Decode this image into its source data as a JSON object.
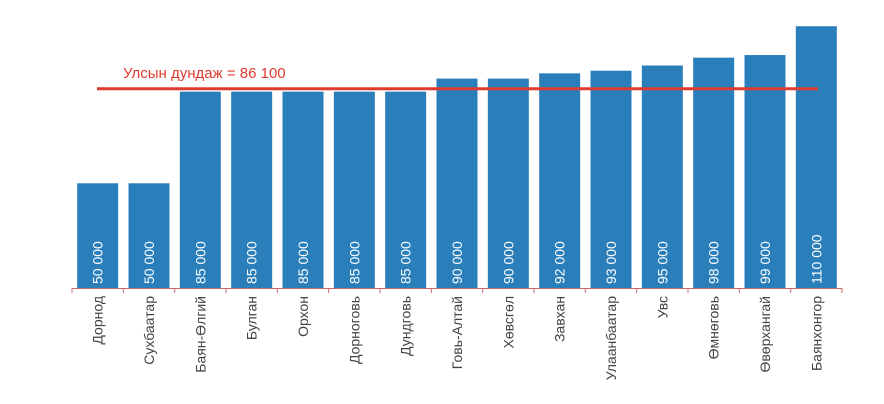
{
  "chart_data": {
    "type": "bar",
    "title": "",
    "xlabel": "",
    "ylabel": "",
    "ylim": [
      10000,
      112000
    ],
    "grid": false,
    "categories": [
      "Дорнод",
      "Сухбаатар",
      "Баян-Өлгий",
      "Булган",
      "Орхон",
      "Дорноговь",
      "Дундговь",
      "Говь-Алтай",
      "Хөвсгөл",
      "Завхан",
      "Улаанбаатар",
      "Увс",
      "Өмнөговь",
      "Өвөрхангай",
      "Баянхонгор"
    ],
    "values": [
      50000,
      50000,
      85000,
      85000,
      85000,
      85000,
      85000,
      90000,
      90000,
      92000,
      93000,
      95000,
      98000,
      99000,
      110000
    ],
    "value_labels": [
      "50 000",
      "50 000",
      "85 000",
      "85 000",
      "85 000",
      "85 000",
      "85 000",
      "90 000",
      "90 000",
      "92 000",
      "93 000",
      "95 000",
      "98 000",
      "99 000",
      "110 000"
    ],
    "average": {
      "value": 86100,
      "label": "Улсын дундаж = 86 100"
    },
    "colors": {
      "bar": "#2a7fba",
      "average": "#e03a2f",
      "axis": "#c96b6b"
    }
  }
}
